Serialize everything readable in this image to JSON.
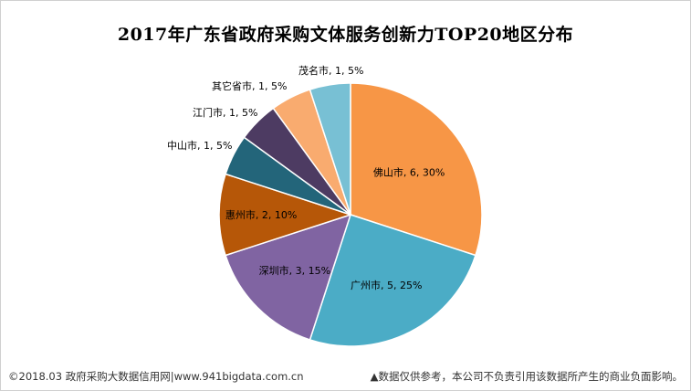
{
  "chart_data": {
    "type": "pie",
    "title": "2017年广东省政府采购文体服务创新力TOP20地区分布",
    "slices": [
      {
        "name": "佛山市",
        "value": 6,
        "percent": 30,
        "label": "佛山市, 6, 30%",
        "color": "#F79646"
      },
      {
        "name": "广州市",
        "value": 5,
        "percent": 25,
        "label": "广州市, 5, 25%",
        "color": "#4BACC6"
      },
      {
        "name": "深圳市",
        "value": 3,
        "percent": 15,
        "label": "深圳市, 3, 15%",
        "color": "#8064A2"
      },
      {
        "name": "惠州市",
        "value": 2,
        "percent": 10,
        "label": "惠州市, 2, 10%",
        "color": "#B65708"
      },
      {
        "name": "中山市",
        "value": 1,
        "percent": 5,
        "label": "中山市, 1, 5%",
        "color": "#23657A"
      },
      {
        "name": "江门市",
        "value": 1,
        "percent": 5,
        "label": "江门市, 1, 5%",
        "color": "#4D3B62"
      },
      {
        "name": "其它省市",
        "value": 1,
        "percent": 5,
        "label": "其它省市, 1, 5%",
        "color": "#F9AB6F"
      },
      {
        "name": "茂名市",
        "value": 1,
        "percent": 5,
        "label": "茂名市, 1, 5%",
        "color": "#78C0D4"
      }
    ]
  },
  "footer": {
    "source": "©2018.03 政府采购大数据信用网|www.941bigdata.com.cn",
    "disclaimer": "▲数据仅供参考，本公司不负责引用该数据所产生的商业负面影响。"
  }
}
